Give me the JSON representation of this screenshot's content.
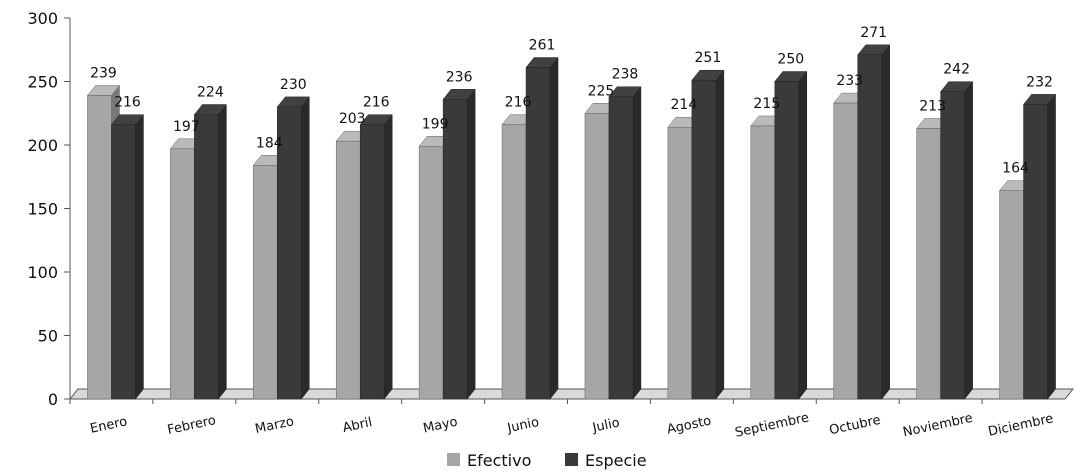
{
  "chart_data": {
    "type": "bar",
    "categories": [
      "Enero",
      "Febrero",
      "Marzo",
      "Abril",
      "Mayo",
      "Junio",
      "Julio",
      "Agosto",
      "Septiembre",
      "Octubre",
      "Noviembre",
      "Diciembre"
    ],
    "series": [
      {
        "name": "Efectivo",
        "values": [
          239,
          197,
          184,
          203,
          199,
          216,
          225,
          214,
          215,
          233,
          213,
          164
        ],
        "color": "#a6a6a6"
      },
      {
        "name": "Especie",
        "values": [
          216,
          224,
          230,
          216,
          236,
          261,
          238,
          251,
          250,
          271,
          242,
          232
        ],
        "color": "#3a3a3a"
      }
    ],
    "ylim": [
      0,
      300
    ],
    "yticks": [
      0,
      50,
      100,
      150,
      200,
      250,
      300
    ],
    "grid": false,
    "legend_position": "bottom",
    "style": "3d-clustered"
  }
}
